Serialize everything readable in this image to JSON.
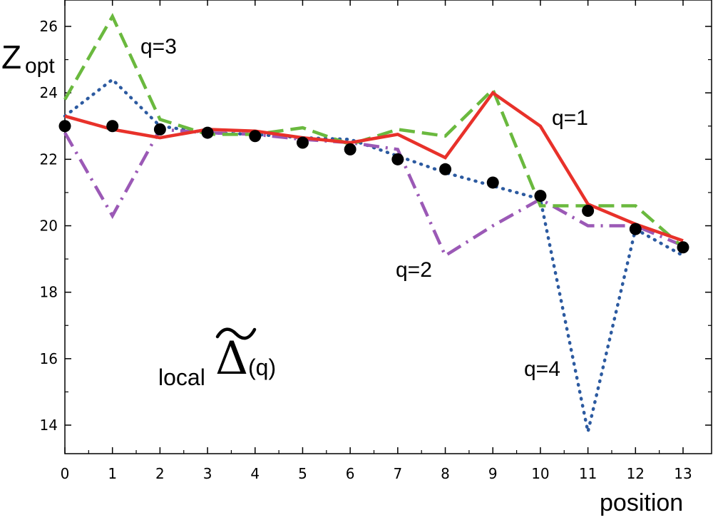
{
  "chart_data": {
    "type": "line",
    "xlabel": "position",
    "ylabel_main": "Z",
    "ylabel_sub": "opt",
    "xlim": [
      0,
      13
    ],
    "ylim": [
      13,
      27
    ],
    "x_ticks": [
      0,
      1,
      2,
      3,
      4,
      5,
      6,
      7,
      8,
      9,
      10,
      11,
      12,
      13
    ],
    "y_ticks": [
      14,
      16,
      18,
      20,
      22,
      24,
      26
    ],
    "legend_formula": {
      "prefix": "local",
      "symbol": "Δ",
      "suffix": "(q)"
    },
    "points": {
      "x": [
        0,
        1,
        2,
        3,
        4,
        5,
        6,
        7,
        8,
        9,
        10,
        11,
        12,
        13
      ],
      "y": [
        23.0,
        23.0,
        22.9,
        22.8,
        22.7,
        22.5,
        22.3,
        22.0,
        21.7,
        21.3,
        20.9,
        20.45,
        19.9,
        19.35
      ],
      "color": "#000000"
    },
    "series": [
      {
        "name": "q=1",
        "color": "#e8312a",
        "style": "solid",
        "x": [
          0,
          1,
          2,
          3,
          4,
          5,
          6,
          7,
          8,
          9,
          10,
          11,
          12,
          13
        ],
        "y": [
          23.3,
          22.9,
          22.65,
          22.9,
          22.85,
          22.65,
          22.5,
          22.75,
          22.05,
          24.0,
          23.0,
          20.65,
          20.05,
          19.55
        ]
      },
      {
        "name": "q=2",
        "color": "#9b59b6",
        "style": "dashdot",
        "x": [
          0,
          1,
          2,
          3,
          4,
          5,
          6,
          7,
          8,
          9,
          10,
          11,
          12,
          13
        ],
        "y": [
          22.8,
          20.3,
          22.9,
          22.8,
          22.75,
          22.6,
          22.5,
          22.3,
          19.1,
          20.0,
          20.8,
          20.0,
          20.0,
          19.4
        ]
      },
      {
        "name": "q=3",
        "color": "#6ab93e",
        "style": "dashed",
        "x": [
          0,
          1,
          2,
          3,
          4,
          5,
          6,
          7,
          8,
          9,
          10,
          11,
          12,
          13
        ],
        "y": [
          23.8,
          26.3,
          23.2,
          22.75,
          22.75,
          22.95,
          22.45,
          22.9,
          22.7,
          24.1,
          20.6,
          20.6,
          20.6,
          19.35
        ]
      },
      {
        "name": "q=4",
        "color": "#2c5aa0",
        "style": "dotted",
        "x": [
          0,
          1,
          2,
          3,
          4,
          5,
          6,
          7,
          8,
          9,
          10,
          11,
          12,
          13
        ],
        "y": [
          23.3,
          24.4,
          23.0,
          22.8,
          22.75,
          22.65,
          22.6,
          22.1,
          21.6,
          21.2,
          20.8,
          13.8,
          19.9,
          19.1
        ]
      }
    ],
    "annotations": [
      {
        "text": "q=3",
        "series": "q=3"
      },
      {
        "text": "q=1",
        "series": "q=1"
      },
      {
        "text": "q=2",
        "series": "q=2"
      },
      {
        "text": "q=4",
        "series": "q=4"
      }
    ]
  }
}
